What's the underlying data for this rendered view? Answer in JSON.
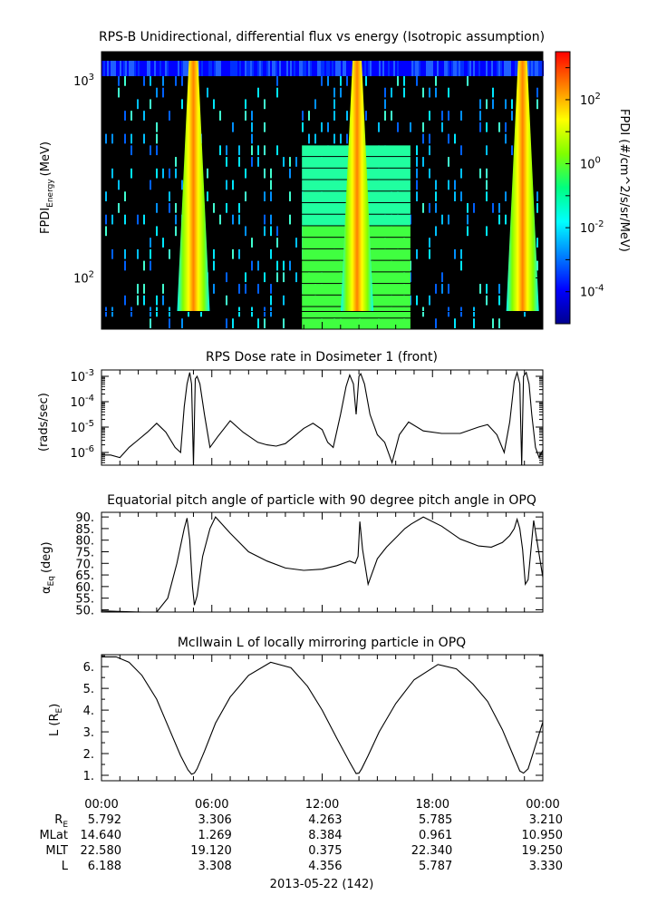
{
  "chart_data": [
    {
      "type": "heatmap",
      "title": "RPS-B  Unidirectional, differential flux vs energy (Isotropic assumption)",
      "ylabel_main": "FPDI",
      "ylabel_sub": "Energy",
      "ylabel_unit": "(MeV)",
      "yscale": "log",
      "ylim": [
        55,
        1400
      ],
      "yticks": [
        {
          "value": 100,
          "base": "10",
          "exp": "2"
        },
        {
          "value": 1000,
          "base": "10",
          "exp": "3"
        }
      ],
      "colorbar": {
        "label": "FPDI (#/cm^2/s/sr/MeV)",
        "scale": "log",
        "range_exp": [
          -5,
          3.5
        ],
        "ticks": [
          {
            "value_exp": 2,
            "base": "10",
            "exp": "2"
          },
          {
            "value_exp": 0,
            "base": "10",
            "exp": "0"
          },
          {
            "value_exp": -2,
            "base": "10",
            "exp": "-2"
          },
          {
            "value_exp": -4,
            "base": "10",
            "exp": "-4"
          }
        ],
        "colors": [
          "#00008f",
          "#0000ff",
          "#0080ff",
          "#00ffff",
          "#00ff80",
          "#80ff00",
          "#ffff00",
          "#ff8000",
          "#ff0000"
        ]
      },
      "bright_bands_hours": [
        5.0,
        13.9,
        22.9
      ],
      "wide_band_hours": [
        10.9,
        16.8
      ]
    },
    {
      "type": "line",
      "title": "RPS  Dose rate in Dosimeter 1 (front)",
      "ylabel": "(rads/sec)",
      "yscale": "log",
      "ylim_exp": [
        -6.5,
        -2.75
      ],
      "yticks": [
        {
          "value_exp": -3,
          "base": "10",
          "exp": "-3"
        },
        {
          "value_exp": -4,
          "base": "10",
          "exp": "-4"
        },
        {
          "value_exp": -5,
          "base": "10",
          "exp": "-5"
        },
        {
          "value_exp": -6,
          "base": "10",
          "exp": "-6"
        }
      ],
      "x_hours": [
        0,
        0.5,
        1.0,
        1.5,
        2.0,
        2.5,
        3.0,
        3.5,
        4.0,
        4.3,
        4.5,
        4.65,
        4.8,
        4.9,
        5.0,
        5.1,
        5.2,
        5.35,
        5.6,
        5.9,
        6.3,
        7.0,
        7.7,
        8.5,
        9.0,
        9.5,
        10.0,
        10.5,
        11.0,
        11.5,
        12.0,
        12.3,
        12.6,
        13.0,
        13.3,
        13.5,
        13.7,
        13.85,
        14.0,
        14.1,
        14.3,
        14.6,
        15.0,
        15.4,
        15.8,
        16.2,
        16.7,
        17.5,
        18.5,
        19.5,
        20.5,
        21.0,
        21.5,
        21.9,
        22.2,
        22.45,
        22.6,
        22.75,
        22.85,
        22.95,
        23.1,
        23.25,
        23.4,
        23.6,
        23.8,
        24.0
      ],
      "y_exp": [
        -6.1,
        -6.1,
        -6.2,
        -5.8,
        -5.5,
        -5.2,
        -4.85,
        -5.2,
        -5.8,
        -6.0,
        -4.2,
        -3.3,
        -2.85,
        -3.3,
        -6.5,
        -3.1,
        -3.0,
        -3.3,
        -4.5,
        -5.8,
        -5.4,
        -4.75,
        -5.2,
        -5.6,
        -5.7,
        -5.75,
        -5.65,
        -5.35,
        -5.05,
        -4.85,
        -5.1,
        -5.6,
        -5.8,
        -4.5,
        -3.4,
        -2.95,
        -3.3,
        -4.5,
        -3.0,
        -2.9,
        -3.3,
        -4.5,
        -5.3,
        -5.6,
        -6.4,
        -5.3,
        -4.8,
        -5.15,
        -5.25,
        -5.25,
        -5.0,
        -4.9,
        -5.3,
        -6.0,
        -4.8,
        -3.2,
        -2.85,
        -3.3,
        -6.5,
        -3.0,
        -2.85,
        -3.3,
        -4.5,
        -5.8,
        -6.2,
        -5.9
      ]
    },
    {
      "type": "line",
      "title": "Equatorial pitch angle of particle with 90 degree pitch angle in OPQ",
      "ylabel_main": "α",
      "ylabel_sub": "Eq",
      "ylabel_unit": "(deg)",
      "ylim": [
        49,
        92
      ],
      "yticks": [
        50,
        55,
        60,
        65,
        70,
        75,
        80,
        85,
        90
      ],
      "ytick_labels": [
        "50.",
        "55.",
        "60.",
        "65.",
        "70.",
        "75.",
        "80.",
        "85.",
        "90."
      ],
      "x_hours": [
        0,
        2.2,
        3.0,
        3.6,
        4.1,
        4.5,
        4.65,
        4.8,
        4.95,
        5.05,
        5.2,
        5.5,
        5.9,
        6.2,
        7.0,
        8.0,
        9.0,
        10.0,
        11.0,
        12.0,
        12.8,
        13.5,
        13.8,
        13.95,
        14.05,
        14.2,
        14.5,
        15.0,
        15.5,
        16.0,
        16.5,
        16.85,
        17.5,
        18.5,
        19.5,
        20.5,
        21.2,
        21.8,
        22.2,
        22.45,
        22.6,
        22.75,
        22.9,
        23.05,
        23.2,
        23.5,
        24.0
      ],
      "y_values": [
        49.5,
        49.0,
        49.0,
        55.0,
        70.0,
        85.0,
        89.5,
        80.0,
        60.0,
        52.0,
        56.0,
        73.0,
        85.0,
        90.0,
        83.0,
        75.0,
        71.0,
        68.0,
        67.0,
        67.5,
        69.0,
        71.0,
        70.0,
        73.0,
        88.0,
        76.0,
        61.0,
        72.0,
        77.0,
        81.0,
        85.0,
        87.0,
        90.0,
        86.0,
        80.5,
        77.5,
        77.0,
        79.0,
        82.0,
        85.0,
        89.0,
        85.0,
        76.0,
        61.0,
        63.0,
        88.5,
        64.0
      ]
    },
    {
      "type": "line",
      "title": "McIlwain L of locally mirroring particle in OPQ",
      "ylabel_main": "L (R",
      "ylabel_sub": "E",
      "ylabel_tail": ")",
      "ylim": [
        0.75,
        6.55
      ],
      "yticks": [
        1,
        2,
        3,
        4,
        5,
        6
      ],
      "ytick_labels": [
        "1.",
        "2.",
        "3.",
        "4.",
        "5.",
        "6."
      ],
      "x_hours": [
        0,
        0.8,
        1.5,
        2.2,
        3.0,
        3.7,
        4.3,
        4.7,
        4.9,
        5.05,
        5.2,
        5.6,
        6.2,
        7.0,
        8.0,
        9.2,
        10.3,
        11.2,
        12.0,
        12.8,
        13.5,
        13.85,
        14.0,
        14.15,
        14.5,
        15.1,
        16.0,
        17.0,
        18.3,
        19.3,
        20.2,
        21.0,
        21.8,
        22.4,
        22.75,
        22.95,
        23.2,
        23.5,
        24.0
      ],
      "y_values": [
        6.45,
        6.45,
        6.2,
        5.6,
        4.5,
        3.1,
        1.9,
        1.25,
        1.05,
        1.1,
        1.3,
        2.1,
        3.4,
        4.6,
        5.6,
        6.2,
        5.95,
        5.1,
        4.0,
        2.7,
        1.6,
        1.08,
        1.1,
        1.3,
        1.9,
        3.0,
        4.3,
        5.4,
        6.1,
        5.9,
        5.2,
        4.4,
        3.1,
        1.9,
        1.2,
        1.1,
        1.3,
        2.1,
        3.45
      ]
    }
  ],
  "time_axis": {
    "tick_labels": [
      "00:00",
      "06:00",
      "12:00",
      "18:00",
      "00:00"
    ],
    "date_label": "2013-05-22 (142)"
  },
  "ephemeris": {
    "rows": [
      {
        "label_main": "R",
        "label_sub": "E",
        "values": [
          "5.792",
          "3.306",
          "4.263",
          "5.785",
          "3.210"
        ]
      },
      {
        "label_main": "MLat",
        "label_sub": "",
        "values": [
          "14.640",
          "1.269",
          "8.384",
          "0.961",
          "10.950"
        ]
      },
      {
        "label_main": "MLT",
        "label_sub": "",
        "values": [
          "22.580",
          "19.120",
          "0.375",
          "22.340",
          "19.250"
        ]
      },
      {
        "label_main": "L",
        "label_sub": "",
        "values": [
          "6.188",
          "3.308",
          "4.356",
          "5.787",
          "3.330"
        ]
      }
    ]
  }
}
